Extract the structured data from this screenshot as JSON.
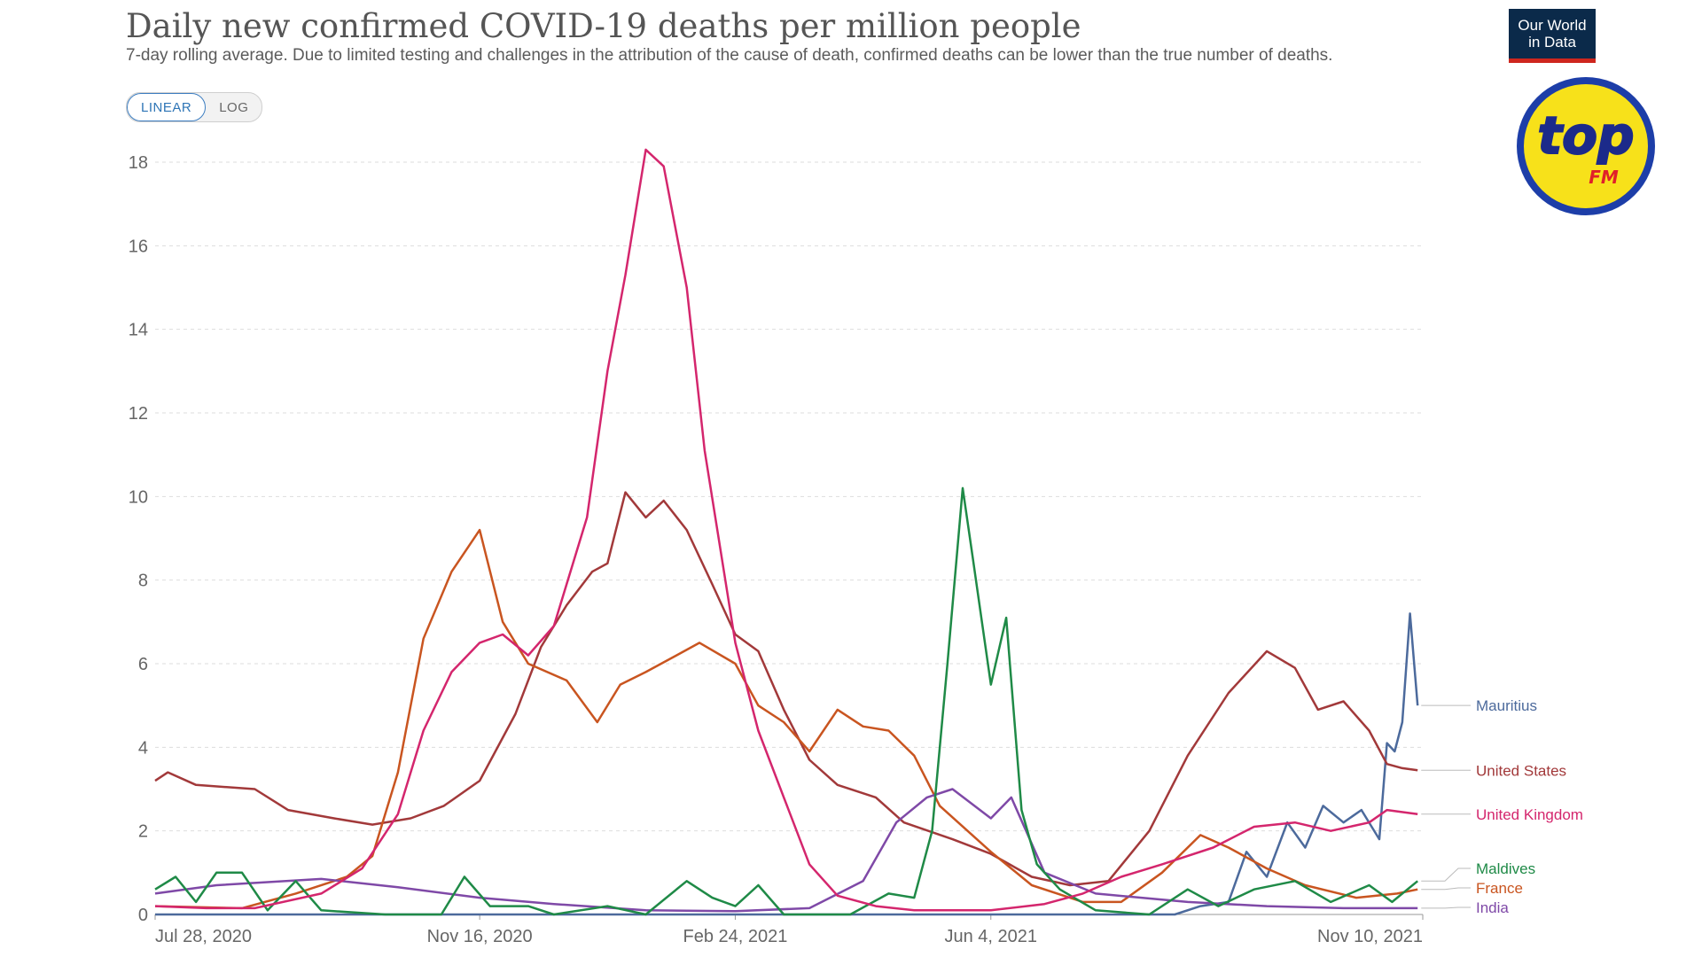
{
  "header": {
    "title": "Daily new confirmed COVID-19 deaths per million people",
    "subtitle": "7-day rolling average. Due to limited testing and challenges in the attribution of the cause of death, confirmed deaths can be lower than the true number of deaths.",
    "scale_linear": "LINEAR",
    "scale_log": "LOG",
    "logo_line1": "Our World",
    "logo_line2": "in Data"
  },
  "badge": {
    "text": "top",
    "sub": "FM"
  },
  "chart_data": {
    "type": "line",
    "title": "Daily new confirmed COVID-19 deaths per million people",
    "subtitle": "7-day rolling average. Due to limited testing and challenges in the attribution of the cause of death, confirmed deaths can be lower than the true number of deaths.",
    "scale": "linear",
    "x_start": "2020-07-12",
    "x_end": "2021-11-20",
    "x_ticks": [
      "Jul 28, 2020",
      "Nov 16, 2020",
      "Feb 24, 2021",
      "Jun 4, 2021",
      "Nov 10, 2021"
    ],
    "x_tick_dates": [
      "2020-07-28",
      "2020-11-16",
      "2021-02-24",
      "2021-06-04",
      "2021-11-10"
    ],
    "ylim": [
      0,
      18
    ],
    "y_ticks": [
      0,
      2,
      4,
      6,
      8,
      10,
      12,
      14,
      16,
      18
    ],
    "grid": true,
    "legend": "right",
    "series": [
      {
        "name": "Mauritius",
        "color": "#4c6a9c",
        "points": [
          [
            "2020-07-12",
            0
          ],
          [
            "2021-08-15",
            0
          ],
          [
            "2021-08-25",
            0.2
          ],
          [
            "2021-09-05",
            0.3
          ],
          [
            "2021-09-12",
            1.5
          ],
          [
            "2021-09-20",
            0.9
          ],
          [
            "2021-09-28",
            2.2
          ],
          [
            "2021-10-05",
            1.6
          ],
          [
            "2021-10-12",
            2.6
          ],
          [
            "2021-10-20",
            2.2
          ],
          [
            "2021-10-27",
            2.5
          ],
          [
            "2021-11-03",
            1.8
          ],
          [
            "2021-11-06",
            4.1
          ],
          [
            "2021-11-09",
            3.9
          ],
          [
            "2021-11-12",
            4.6
          ],
          [
            "2021-11-15",
            7.2
          ],
          [
            "2021-11-18",
            5.0
          ]
        ]
      },
      {
        "name": "United States",
        "color": "#a2393a",
        "points": [
          [
            "2020-07-12",
            3.2
          ],
          [
            "2020-07-17",
            3.4
          ],
          [
            "2020-07-28",
            3.1
          ],
          [
            "2020-08-20",
            3.0
          ],
          [
            "2020-09-02",
            2.5
          ],
          [
            "2020-09-20",
            2.3
          ],
          [
            "2020-10-05",
            2.15
          ],
          [
            "2020-10-20",
            2.3
          ],
          [
            "2020-11-02",
            2.6
          ],
          [
            "2020-11-16",
            3.2
          ],
          [
            "2020-11-30",
            4.8
          ],
          [
            "2020-12-10",
            6.4
          ],
          [
            "2020-12-20",
            7.4
          ],
          [
            "2020-12-30",
            8.2
          ],
          [
            "2021-01-05",
            8.4
          ],
          [
            "2021-01-12",
            10.1
          ],
          [
            "2021-01-20",
            9.5
          ],
          [
            "2021-01-27",
            9.9
          ],
          [
            "2021-02-05",
            9.2
          ],
          [
            "2021-02-15",
            7.9
          ],
          [
            "2021-02-24",
            6.7
          ],
          [
            "2021-03-05",
            6.3
          ],
          [
            "2021-03-15",
            4.9
          ],
          [
            "2021-03-25",
            3.7
          ],
          [
            "2021-04-05",
            3.1
          ],
          [
            "2021-04-20",
            2.8
          ],
          [
            "2021-05-01",
            2.2
          ],
          [
            "2021-05-20",
            1.8
          ],
          [
            "2021-06-04",
            1.45
          ],
          [
            "2021-06-20",
            0.9
          ],
          [
            "2021-07-05",
            0.7
          ],
          [
            "2021-07-20",
            0.8
          ],
          [
            "2021-08-05",
            2.0
          ],
          [
            "2021-08-20",
            3.8
          ],
          [
            "2021-09-05",
            5.3
          ],
          [
            "2021-09-20",
            6.3
          ],
          [
            "2021-10-01",
            5.9
          ],
          [
            "2021-10-10",
            4.9
          ],
          [
            "2021-10-20",
            5.1
          ],
          [
            "2021-10-30",
            4.4
          ],
          [
            "2021-11-06",
            3.6
          ],
          [
            "2021-11-12",
            3.5
          ],
          [
            "2021-11-18",
            3.45
          ]
        ]
      },
      {
        "name": "United Kingdom",
        "color": "#d4266d",
        "points": [
          [
            "2020-07-12",
            0.2
          ],
          [
            "2020-08-01",
            0.15
          ],
          [
            "2020-08-20",
            0.15
          ],
          [
            "2020-09-15",
            0.5
          ],
          [
            "2020-10-01",
            1.1
          ],
          [
            "2020-10-15",
            2.4
          ],
          [
            "2020-10-25",
            4.4
          ],
          [
            "2020-11-05",
            5.8
          ],
          [
            "2020-11-16",
            6.5
          ],
          [
            "2020-11-25",
            6.7
          ],
          [
            "2020-12-05",
            6.2
          ],
          [
            "2020-12-15",
            6.9
          ],
          [
            "2020-12-28",
            9.5
          ],
          [
            "2021-01-05",
            13.0
          ],
          [
            "2021-01-12",
            15.3
          ],
          [
            "2021-01-20",
            18.3
          ],
          [
            "2021-01-27",
            17.9
          ],
          [
            "2021-02-05",
            15.0
          ],
          [
            "2021-02-12",
            11.1
          ],
          [
            "2021-02-24",
            6.5
          ],
          [
            "2021-03-05",
            4.4
          ],
          [
            "2021-03-15",
            2.8
          ],
          [
            "2021-03-25",
            1.2
          ],
          [
            "2021-04-05",
            0.45
          ],
          [
            "2021-04-20",
            0.2
          ],
          [
            "2021-05-05",
            0.1
          ],
          [
            "2021-06-04",
            0.1
          ],
          [
            "2021-06-25",
            0.25
          ],
          [
            "2021-07-10",
            0.5
          ],
          [
            "2021-07-25",
            0.9
          ],
          [
            "2021-08-10",
            1.2
          ],
          [
            "2021-08-30",
            1.6
          ],
          [
            "2021-09-15",
            2.1
          ],
          [
            "2021-10-01",
            2.2
          ],
          [
            "2021-10-15",
            2.0
          ],
          [
            "2021-10-30",
            2.2
          ],
          [
            "2021-11-06",
            2.5
          ],
          [
            "2021-11-18",
            2.4
          ]
        ]
      },
      {
        "name": "Maldives",
        "color": "#1f8a47",
        "points": [
          [
            "2020-07-12",
            0.6
          ],
          [
            "2020-07-20",
            0.9
          ],
          [
            "2020-07-28",
            0.3
          ],
          [
            "2020-08-05",
            1.0
          ],
          [
            "2020-08-15",
            1.0
          ],
          [
            "2020-08-25",
            0.1
          ],
          [
            "2020-09-05",
            0.8
          ],
          [
            "2020-09-15",
            0.1
          ],
          [
            "2020-10-10",
            0
          ],
          [
            "2020-11-01",
            0
          ],
          [
            "2020-11-10",
            0.9
          ],
          [
            "2020-11-20",
            0.2
          ],
          [
            "2020-12-05",
            0.2
          ],
          [
            "2020-12-15",
            0
          ],
          [
            "2021-01-05",
            0.2
          ],
          [
            "2021-01-20",
            0
          ],
          [
            "2021-02-05",
            0.8
          ],
          [
            "2021-02-15",
            0.4
          ],
          [
            "2021-02-24",
            0.2
          ],
          [
            "2021-03-05",
            0.7
          ],
          [
            "2021-03-15",
            0
          ],
          [
            "2021-04-10",
            0
          ],
          [
            "2021-04-25",
            0.5
          ],
          [
            "2021-05-05",
            0.4
          ],
          [
            "2021-05-12",
            2.0
          ],
          [
            "2021-05-18",
            6.0
          ],
          [
            "2021-05-24",
            10.2
          ],
          [
            "2021-05-28",
            8.5
          ],
          [
            "2021-06-04",
            5.5
          ],
          [
            "2021-06-10",
            7.1
          ],
          [
            "2021-06-16",
            2.5
          ],
          [
            "2021-06-22",
            1.2
          ],
          [
            "2021-07-01",
            0.6
          ],
          [
            "2021-07-15",
            0.1
          ],
          [
            "2021-08-05",
            0
          ],
          [
            "2021-08-20",
            0.6
          ],
          [
            "2021-09-01",
            0.2
          ],
          [
            "2021-09-15",
            0.6
          ],
          [
            "2021-10-01",
            0.8
          ],
          [
            "2021-10-15",
            0.3
          ],
          [
            "2021-10-30",
            0.7
          ],
          [
            "2021-11-08",
            0.3
          ],
          [
            "2021-11-18",
            0.8
          ]
        ]
      },
      {
        "name": "France",
        "color": "#c95520",
        "points": [
          [
            "2020-07-12",
            0.2
          ],
          [
            "2020-08-15",
            0.15
          ],
          [
            "2020-09-05",
            0.5
          ],
          [
            "2020-09-25",
            0.9
          ],
          [
            "2020-10-05",
            1.4
          ],
          [
            "2020-10-15",
            3.4
          ],
          [
            "2020-10-25",
            6.6
          ],
          [
            "2020-11-05",
            8.2
          ],
          [
            "2020-11-16",
            9.2
          ],
          [
            "2020-11-25",
            7.0
          ],
          [
            "2020-12-05",
            6.0
          ],
          [
            "2020-12-20",
            5.6
          ],
          [
            "2021-01-01",
            4.6
          ],
          [
            "2021-01-10",
            5.5
          ],
          [
            "2021-01-20",
            5.8
          ],
          [
            "2021-02-01",
            6.2
          ],
          [
            "2021-02-10",
            6.5
          ],
          [
            "2021-02-24",
            6.0
          ],
          [
            "2021-03-05",
            5.0
          ],
          [
            "2021-03-15",
            4.6
          ],
          [
            "2021-03-25",
            3.9
          ],
          [
            "2021-04-05",
            4.9
          ],
          [
            "2021-04-15",
            4.5
          ],
          [
            "2021-04-25",
            4.4
          ],
          [
            "2021-05-05",
            3.8
          ],
          [
            "2021-05-15",
            2.6
          ],
          [
            "2021-06-04",
            1.5
          ],
          [
            "2021-06-20",
            0.7
          ],
          [
            "2021-07-10",
            0.3
          ],
          [
            "2021-07-25",
            0.3
          ],
          [
            "2021-08-10",
            1.0
          ],
          [
            "2021-08-25",
            1.9
          ],
          [
            "2021-09-05",
            1.6
          ],
          [
            "2021-09-20",
            1.1
          ],
          [
            "2021-10-05",
            0.7
          ],
          [
            "2021-10-25",
            0.4
          ],
          [
            "2021-11-10",
            0.5
          ],
          [
            "2021-11-18",
            0.6
          ]
        ]
      },
      {
        "name": "India",
        "color": "#7f49a7",
        "points": [
          [
            "2020-07-12",
            0.5
          ],
          [
            "2020-08-05",
            0.7
          ],
          [
            "2020-09-15",
            0.85
          ],
          [
            "2020-10-15",
            0.65
          ],
          [
            "2020-11-16",
            0.4
          ],
          [
            "2020-12-15",
            0.25
          ],
          [
            "2021-01-20",
            0.1
          ],
          [
            "2021-02-24",
            0.08
          ],
          [
            "2021-03-25",
            0.15
          ],
          [
            "2021-04-15",
            0.8
          ],
          [
            "2021-04-28",
            2.2
          ],
          [
            "2021-05-10",
            2.8
          ],
          [
            "2021-05-20",
            3.0
          ],
          [
            "2021-06-04",
            2.3
          ],
          [
            "2021-06-12",
            2.8
          ],
          [
            "2021-06-25",
            1.0
          ],
          [
            "2021-07-15",
            0.5
          ],
          [
            "2021-08-20",
            0.3
          ],
          [
            "2021-09-20",
            0.2
          ],
          [
            "2021-10-20",
            0.15
          ],
          [
            "2021-11-18",
            0.15
          ]
        ]
      }
    ]
  }
}
